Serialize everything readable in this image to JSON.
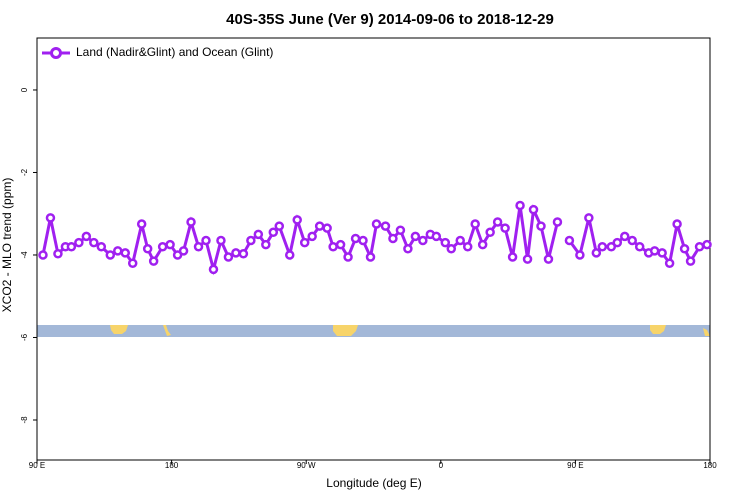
{
  "chart_data": {
    "type": "line",
    "title": "40S-35S June (Ver 9)   2014-09-06 to 2018-12-29",
    "xlabel": "Longitude (deg E)",
    "ylabel": "XCO2 - MLO trend (ppm)",
    "legend": "top-left",
    "x": [
      94,
      99,
      104,
      109,
      113,
      118,
      123,
      128,
      133,
      139,
      144,
      149,
      154,
      160,
      164,
      168,
      174,
      179,
      184,
      188,
      193,
      198,
      203,
      208,
      213,
      218,
      223,
      228,
      233,
      238,
      243,
      248,
      252,
      259,
      264,
      269,
      274,
      279,
      284,
      288,
      293,
      298,
      303,
      308,
      313,
      317,
      323,
      328,
      333,
      338,
      343,
      348,
      353,
      357,
      363,
      367,
      373,
      378,
      383,
      388,
      393,
      398,
      403,
      408,
      413,
      418,
      422,
      427,
      432,
      438,
      442,
      446,
      453,
      459,
      464,
      468,
      474,
      478,
      483,
      488,
      493,
      499,
      503,
      508,
      513,
      518,
      523,
      527,
      533,
      538
    ],
    "series": [
      {
        "name": "Land (Nadir&Glint) and Ocean (Glint)",
        "color": "#a020f0",
        "values": [
          -4.0,
          -3.1,
          -3.97,
          -3.8,
          -3.8,
          -3.7,
          -3.55,
          -3.7,
          -3.8,
          -4.0,
          -3.9,
          -3.95,
          -4.2,
          -3.25,
          -3.85,
          -4.15,
          -3.8,
          -3.75,
          -4.0,
          -3.9,
          -3.2,
          -3.8,
          -3.65,
          -4.35,
          -3.65,
          -4.05,
          -3.95,
          -3.97,
          -3.65,
          -3.5,
          -3.75,
          -3.45,
          -3.3,
          -4.0,
          -3.15,
          -3.7,
          -3.55,
          -3.3,
          -3.35,
          -3.8,
          -3.75,
          -4.05,
          -3.6,
          -3.65,
          -4.05,
          -3.25,
          -3.3,
          -3.6,
          -3.4,
          -3.85,
          -3.55,
          -3.65,
          -3.5,
          -3.55,
          -3.7,
          -3.85,
          -3.65,
          -3.8,
          -3.25,
          -3.75,
          -3.45,
          -3.2,
          -3.35,
          -4.05,
          -2.8,
          -4.1,
          -2.9,
          -3.3,
          -4.1,
          -3.2,
          null,
          -3.65,
          -4.0,
          -3.1,
          -3.95,
          -3.8,
          -3.8,
          -3.7,
          -3.55,
          -3.65,
          -3.8,
          -3.95,
          -3.9,
          -3.95,
          -4.2,
          -3.25,
          -3.85,
          -4.15,
          -3.8,
          -3.75
        ]
      }
    ],
    "xlim": [
      90,
      540
    ],
    "xticks": [
      {
        "value": 90,
        "label": "90 E"
      },
      180,
      {
        "value": 270,
        "label": "90 W"
      },
      {
        "value": 360,
        "label": "0"
      },
      {
        "value": 450,
        "label": "90 E"
      },
      {
        "value": 540,
        "label": "180"
      }
    ],
    "ylim": [
      -8.97,
      1.26
    ],
    "yticks": [
      0,
      -2,
      -4,
      -6,
      -8
    ],
    "grid": false
  }
}
